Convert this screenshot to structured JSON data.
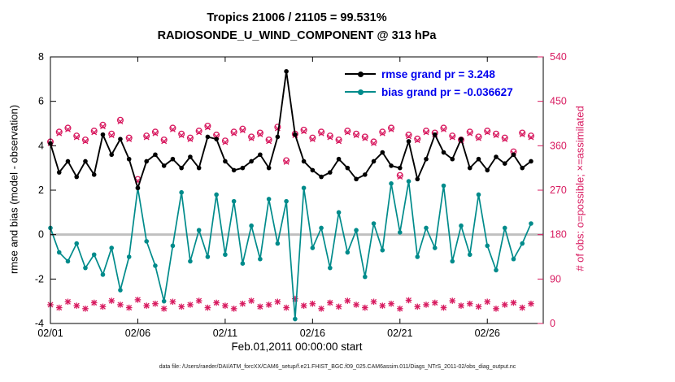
{
  "title": {
    "line1": "Tropics 21006 / 21105 = 99.531%",
    "line2": "RADIOSONDE_U_WIND_COMPONENT @ 313 hPa"
  },
  "axes": {
    "left_label": "rmse and bias (model - observation)",
    "right_label": "# of obs: o=possible; ×=assimilated",
    "x_label": "Feb.01,2011 00:00:00 start",
    "left_range": [
      -4,
      8
    ],
    "right_range": [
      0,
      540
    ],
    "x_range": [
      1,
      29.2
    ],
    "left_ticks": [
      -4,
      -2,
      0,
      2,
      4,
      6,
      8
    ],
    "right_ticks": [
      0,
      90,
      180,
      270,
      360,
      450,
      540
    ],
    "x_ticks": {
      "values": [
        1,
        6,
        11,
        16,
        21,
        26
      ],
      "labels": [
        "02/01",
        "02/06",
        "02/11",
        "02/16",
        "02/21",
        "02/26"
      ]
    }
  },
  "legend": [
    {
      "label": "rmse grand pr = 3.248",
      "color": "#000000"
    },
    {
      "label": "bias grand pr = -0.036627",
      "color": "#008b8b"
    }
  ],
  "caption": "data file: /Users/raeder/DAI/ATM_forcXX/CAM6_setup/f.e21.FHIST_BGC.f09_025.CAM6assim.011/Diags_NTrS_2011-02/obs_diag_output.nc",
  "colors": {
    "rmse": "#000000",
    "bias": "#008b8b",
    "obs": "#d81b60",
    "legend_text": "#0000ee",
    "zero_line": "#c0c0c0",
    "axis": "#000000"
  },
  "chart_data": {
    "type": "line",
    "title": "Tropics 21006 / 21105 = 99.531% | RADIOSONDE_U_WIND_COMPONENT @ 313 hPa",
    "xlabel": "Feb.01,2011 00:00:00 start",
    "ylabel_left": "rmse and bias (model - observation)",
    "ylabel_right": "# of obs: o=possible; ×=assimilated",
    "ylim_left": [
      -4,
      8
    ],
    "ylim_right": [
      0,
      540
    ],
    "grid": false,
    "legend_position": "upper-middle-inside",
    "x_days": [
      1,
      1.5,
      2,
      2.5,
      3,
      3.5,
      4,
      4.5,
      5,
      5.5,
      6,
      6.5,
      7,
      7.5,
      8,
      8.5,
      9,
      9.5,
      10,
      10.5,
      11,
      11.5,
      12,
      12.5,
      13,
      13.5,
      14,
      14.5,
      15,
      15.5,
      16,
      16.5,
      17,
      17.5,
      18,
      18.5,
      19,
      19.5,
      20,
      20.5,
      21,
      21.5,
      22,
      22.5,
      23,
      23.5,
      24,
      24.5,
      25,
      25.5,
      26,
      26.5,
      27,
      27.5,
      28,
      28.5
    ],
    "series": [
      {
        "name": "num_obs_possible",
        "axis": "right",
        "style": "o",
        "color": "#d81b60",
        "values": [
          368,
          388,
          396,
          380,
          372,
          390,
          402,
          384,
          412,
          376,
          292,
          380,
          388,
          372,
          396,
          384,
          376,
          390,
          400,
          382,
          370,
          388,
          394,
          378,
          386,
          372,
          398,
          330,
          384,
          392,
          376,
          388,
          380,
          372,
          390,
          384,
          378,
          368,
          388,
          396,
          300,
          382,
          374,
          390,
          386,
          396,
          380,
          372,
          388,
          378,
          390,
          384,
          376,
          348,
          386,
          380
        ]
      },
      {
        "name": "num_obs_assimilated",
        "axis": "right",
        "style": "x",
        "color": "#d81b60",
        "values": [
          365,
          385,
          393,
          377,
          369,
          387,
          399,
          381,
          409,
          373,
          289,
          377,
          385,
          369,
          393,
          381,
          373,
          387,
          397,
          379,
          367,
          385,
          391,
          375,
          383,
          369,
          395,
          327,
          381,
          389,
          373,
          385,
          377,
          369,
          387,
          381,
          375,
          365,
          385,
          393,
          297,
          379,
          371,
          387,
          383,
          393,
          377,
          369,
          385,
          375,
          387,
          381,
          373,
          345,
          383,
          377
        ]
      },
      {
        "name": "num_obs_lower_band",
        "axis": "right",
        "style": "asterisk",
        "color": "#d81b60",
        "values": [
          38,
          32,
          44,
          36,
          30,
          42,
          34,
          46,
          38,
          32,
          48,
          36,
          40,
          30,
          44,
          34,
          38,
          46,
          32,
          42,
          36,
          30,
          40,
          46,
          34,
          38,
          44,
          32,
          50,
          36,
          40,
          30,
          42,
          34,
          46,
          38,
          32,
          44,
          36,
          40,
          30,
          47,
          34,
          38,
          42,
          32,
          46,
          36,
          40,
          34,
          44,
          30,
          38,
          42,
          32,
          40
        ]
      },
      {
        "name": "bias",
        "axis": "left",
        "style": "line-dot",
        "color": "#008b8b",
        "line_width": 1.7,
        "values": [
          0.3,
          -0.8,
          -1.2,
          -0.4,
          -1.5,
          -0.9,
          -1.8,
          -0.6,
          -2.5,
          -1.0,
          2.1,
          -0.3,
          -1.4,
          -3.0,
          -0.5,
          1.9,
          -1.2,
          0.2,
          -1.0,
          1.8,
          -0.9,
          1.5,
          -1.3,
          0.4,
          -1.1,
          1.6,
          -0.4,
          1.5,
          -3.8,
          2.1,
          -0.6,
          0.3,
          -1.5,
          1.0,
          -0.8,
          0.2,
          -1.9,
          0.5,
          -0.7,
          2.3,
          0.1,
          2.4,
          -1.0,
          0.3,
          -0.6,
          2.2,
          -1.2,
          0.4,
          -0.9,
          1.8,
          -0.5,
          -1.6,
          0.3,
          -1.1,
          -0.4,
          0.5
        ]
      },
      {
        "name": "rmse",
        "axis": "left",
        "style": "line-dot",
        "color": "#000000",
        "line_width": 1.9,
        "values": [
          4.1,
          2.8,
          3.3,
          2.6,
          3.3,
          2.7,
          4.5,
          3.6,
          4.3,
          3.4,
          2.1,
          3.3,
          3.6,
          3.1,
          3.4,
          3.0,
          3.5,
          3.0,
          4.4,
          4.3,
          3.3,
          2.9,
          3.0,
          3.3,
          3.6,
          3.0,
          4.4,
          7.35,
          4.5,
          3.3,
          2.9,
          2.6,
          2.8,
          3.4,
          3.0,
          2.5,
          2.7,
          3.3,
          3.7,
          3.1,
          3.0,
          4.2,
          2.5,
          3.4,
          4.5,
          3.7,
          3.4,
          4.3,
          3.0,
          3.4,
          2.9,
          3.5,
          3.2,
          3.6,
          3.0,
          3.3
        ]
      }
    ]
  }
}
